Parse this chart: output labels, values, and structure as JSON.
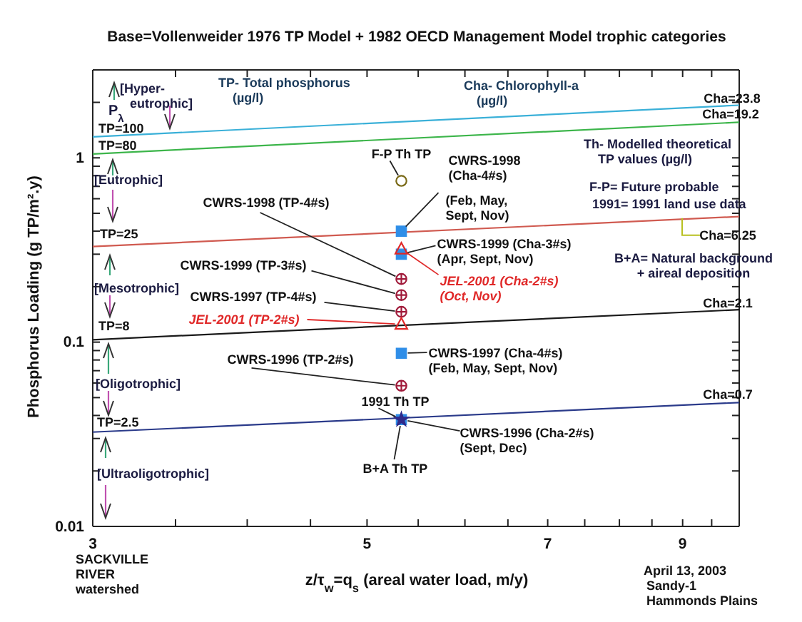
{
  "chart_data": {
    "type": "scatter",
    "title": "Base=Vollenweider 1976 TP Model + 1982 OECD Management Model trophic categories",
    "xlabel": "z/τ$_{w}$=q$_{s}$ (areal water load, m/y)",
    "ylabel": "Phosphorus Loading (g TP/m².y)",
    "log": "xy",
    "xlim": [
      3,
      10
    ],
    "ylim": [
      0.01,
      3
    ],
    "xticks": [
      3,
      {
        "value": 3.5,
        "label": null
      },
      {
        "value": 4,
        "label": null
      },
      {
        "value": 4.5,
        "label": null
      },
      5,
      {
        "value": 5.5,
        "label": null
      },
      {
        "value": 6,
        "label": null
      },
      {
        "value": 6.5,
        "label": null
      },
      7,
      {
        "value": 7.5,
        "label": null
      },
      {
        "value": 8,
        "label": null
      },
      {
        "value": 8.5,
        "label": null
      },
      9,
      {
        "value": 9.5,
        "label": null
      }
    ],
    "yticks": [
      0.01,
      {
        "value": 0.02,
        "label": null
      },
      {
        "value": 0.03,
        "label": null
      },
      {
        "value": 0.04,
        "label": null
      },
      {
        "value": 0.05,
        "label": null
      },
      {
        "value": 0.06,
        "label": null
      },
      {
        "value": 0.07,
        "label": null
      },
      {
        "value": 0.08,
        "label": null
      },
      {
        "value": 0.09,
        "label": null
      },
      0.1,
      {
        "value": 0.2,
        "label": null
      },
      {
        "value": 0.3,
        "label": null
      },
      {
        "value": 0.4,
        "label": null
      },
      {
        "value": 0.5,
        "label": null
      },
      {
        "value": 0.6,
        "label": null
      },
      {
        "value": 0.7,
        "label": null
      },
      {
        "value": 0.8,
        "label": null
      },
      {
        "value": 0.9,
        "label": null
      },
      1,
      {
        "value": 2,
        "label": null
      }
    ],
    "series": [
      {
        "type": "line",
        "color": "#3ab0d8",
        "x": [
          3,
          10
        ],
        "values": [
          1.3,
          1.93
        ]
      },
      {
        "type": "line",
        "color": "#3cb54a",
        "x": [
          3,
          10
        ],
        "values": [
          1.05,
          1.56
        ]
      },
      {
        "type": "line",
        "color": "#d05a50",
        "x": [
          3,
          10
        ],
        "values": [
          0.33,
          0.48
        ]
      },
      {
        "type": "line",
        "color": "#1a1a1a",
        "x": [
          3,
          10
        ],
        "values": [
          0.103,
          0.15
        ]
      },
      {
        "type": "line",
        "color": "#2a3a8a",
        "x": [
          3,
          10
        ],
        "values": [
          0.0325,
          0.047
        ]
      },
      {
        "marker": "cross",
        "color": "#a01a3a",
        "x": [
          5.33,
          5.33,
          5.33,
          5.33
        ],
        "values": [
          0.22,
          0.18,
          0.146,
          0.058
        ]
      },
      {
        "marker": "square",
        "color": "#2f8ee8",
        "x": [
          5.33,
          5.33,
          5.33,
          5.33
        ],
        "values": [
          0.4,
          0.3,
          0.087,
          0.038
        ]
      },
      {
        "marker": "triangle",
        "color": "#e02828",
        "x": [
          5.33,
          5.33
        ],
        "values": [
          0.125,
          0.32
        ]
      },
      {
        "marker": "circle",
        "color": "#7a6a18",
        "x": [
          5.33
        ],
        "values": [
          0.75
        ]
      },
      {
        "marker": "star",
        "color": "#302a8a",
        "x": [
          5.33
        ],
        "values": [
          0.038
        ]
      }
    ],
    "annotations": [
      "P$_{λ}$",
      "[Hyper-\neutrophic]",
      "[Eutrophic]",
      "[Mesotrophic]",
      "[Oligotrophic]",
      "[Ultraoligotrophic]",
      "TP- Total phosphorus\n(µg/l)",
      "Cha- Chlorophyll-a\n(µg/l)",
      "Th- Modelled theoretical\nTP values (µg/l)",
      "F-P= Future probable",
      "1991= 1991 land use data",
      "B+A= Natural background\n+ aireal deposition",
      "SACKVILLE\nRIVER\nwatershed",
      "April 13, 2003\nSandy-1\nHammonds Plains",
      {
        "text": "TP=100",
        "x": 3,
        "y": 1.3
      },
      {
        "text": "TP=80",
        "x": 3,
        "y": 1.05
      },
      {
        "text": "TP=25",
        "x": 3,
        "y": 0.33
      },
      {
        "text": "TP=8",
        "x": 3,
        "y": 0.103
      },
      {
        "text": "TP=2.5",
        "x": 3,
        "y": 0.0325
      },
      {
        "text": "Cha=23.8",
        "x": 10,
        "y": 1.93
      },
      {
        "text": "Cha=19.2",
        "x": 10,
        "y": 1.56
      },
      {
        "text": "Cha=6.25",
        "x": 10,
        "y": 0.48
      },
      {
        "text": "Cha=2.1",
        "x": 10,
        "y": 0.15
      },
      {
        "text": "Cha=0.7",
        "x": 10,
        "y": 0.047
      },
      {
        "text": "F-P Th TP",
        "x": 5.33,
        "y": 0.75
      },
      {
        "text": "CWRS-1998\n(Cha-4#s)",
        "x": 5.33,
        "y": 0.4
      },
      {
        "text": "(Feb, May,\nSept, Nov)",
        "x": 5.33,
        "y": 0.4
      },
      {
        "text": "CWRS-1999 (Cha-3#s)\n(Apr, Sept, Nov)",
        "x": 5.33,
        "y": 0.3
      },
      {
        "text": "JEL-2001 (Cha-2#s)\n(Oct, Nov)",
        "x": 5.33,
        "y": 0.32
      },
      {
        "text": "CWRS-1998 (TP-4#s)",
        "x": 5.33,
        "y": 0.22
      },
      {
        "text": "CWRS-1999 (TP-3#s)",
        "x": 5.33,
        "y": 0.18
      },
      {
        "text": "CWRS-1997 (TP-4#s)",
        "x": 5.33,
        "y": 0.146
      },
      {
        "text": "JEL-2001 (TP-2#s)",
        "x": 5.33,
        "y": 0.125
      },
      {
        "text": "CWRS-1997 (Cha-4#s)\n(Feb, May, Sept, Nov)",
        "x": 5.33,
        "y": 0.087
      },
      {
        "text": "CWRS-1996 (TP-2#s)",
        "x": 5.33,
        "y": 0.058
      },
      {
        "text": "1991 Th TP",
        "x": 5.33,
        "y": 0.038
      },
      {
        "text": "CWRS-1996 (Cha-2#s)\n(Sept, Dec)",
        "x": 5.33,
        "y": 0.038
      },
      {
        "text": "B+A Th TP",
        "x": 5.33,
        "y": 0.038
      }
    ]
  }
}
